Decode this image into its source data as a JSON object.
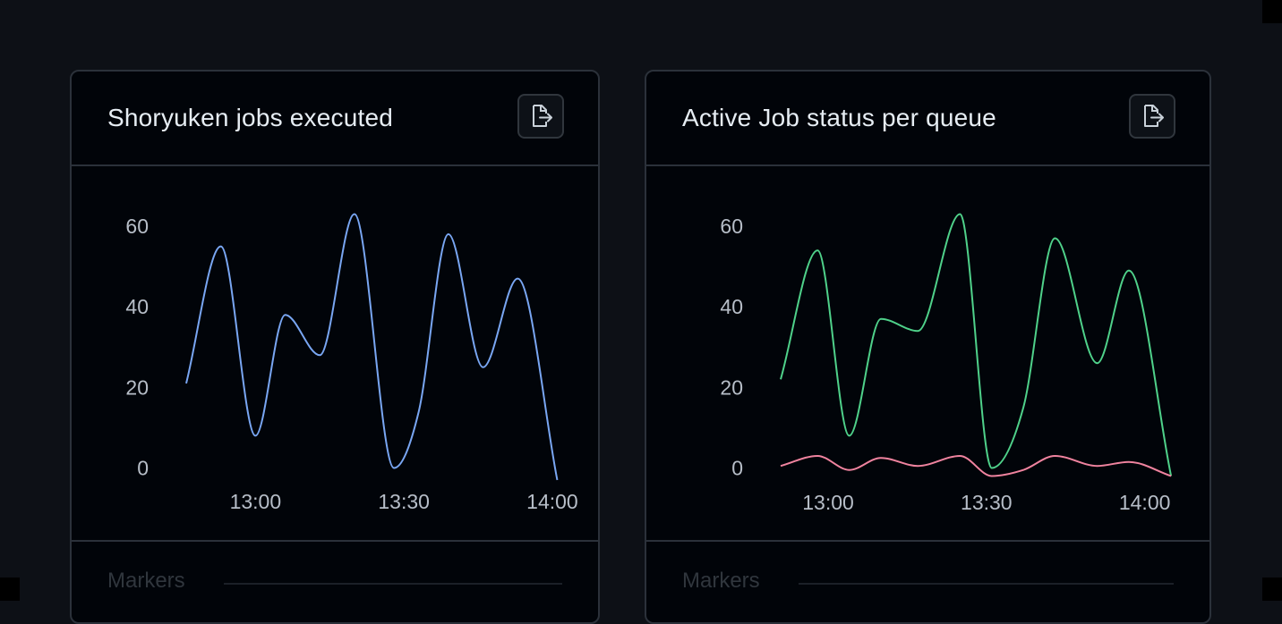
{
  "colors": {
    "series_blue": "#79a6f2",
    "series_green": "#4fd18a",
    "series_pink": "#f0839f",
    "tick_text": "#b7bec8"
  },
  "cards": [
    {
      "title": "Shoryuken jobs executed",
      "export_icon": "export-icon",
      "markers_label": "Markers"
    },
    {
      "title": "Active Job status per queue",
      "export_icon": "export-icon",
      "markers_label": "Markers"
    }
  ],
  "chart_data": [
    {
      "type": "line",
      "title": "Shoryuken jobs executed",
      "xlabel": "",
      "ylabel": "",
      "x_ticks": [
        "13:00",
        "13:30",
        "14:00"
      ],
      "x_tick_positions_min": [
        0,
        30,
        60
      ],
      "x": [
        -14,
        -9,
        -4,
        1,
        6,
        11,
        16,
        21,
        26,
        31,
        36,
        41,
        46,
        51,
        56,
        61
      ],
      "xlim": [
        -14,
        62
      ],
      "y_ticks": [
        0,
        20,
        40,
        60
      ],
      "ylim": [
        -5,
        66
      ],
      "grid": false,
      "series": [
        {
          "values": [
            21,
            55,
            8,
            38,
            28,
            63,
            0,
            14,
            58,
            25,
            47,
            -3
          ],
          "x": [
            -14,
            -7,
            0,
            6,
            13,
            20,
            28,
            33,
            39,
            46,
            53,
            61
          ]
        }
      ]
    },
    {
      "type": "line",
      "title": "Active Job status per queue",
      "xlabel": "",
      "ylabel": "",
      "x_ticks": [
        "13:00",
        "13:30",
        "14:00"
      ],
      "x_tick_positions_min": [
        0,
        30,
        60
      ],
      "xlim": [
        -9,
        66
      ],
      "y_ticks": [
        0,
        20,
        40,
        60
      ],
      "ylim": [
        -5,
        66
      ],
      "grid": false,
      "series": [
        {
          "values": [
            22,
            54,
            8,
            37,
            34,
            63,
            0,
            15,
            57,
            26,
            49,
            -2
          ],
          "x": [
            -9,
            -2,
            4,
            10,
            17,
            25,
            31,
            37,
            43,
            51,
            57,
            65
          ]
        },
        {
          "values": [
            0.5,
            3,
            -0.5,
            2.5,
            0.5,
            3,
            -2,
            -0.5,
            3,
            0.5,
            1.5,
            -2
          ],
          "x": [
            -9,
            -2,
            4,
            10,
            17,
            25,
            31,
            37,
            43,
            51,
            57,
            65
          ]
        }
      ]
    }
  ]
}
